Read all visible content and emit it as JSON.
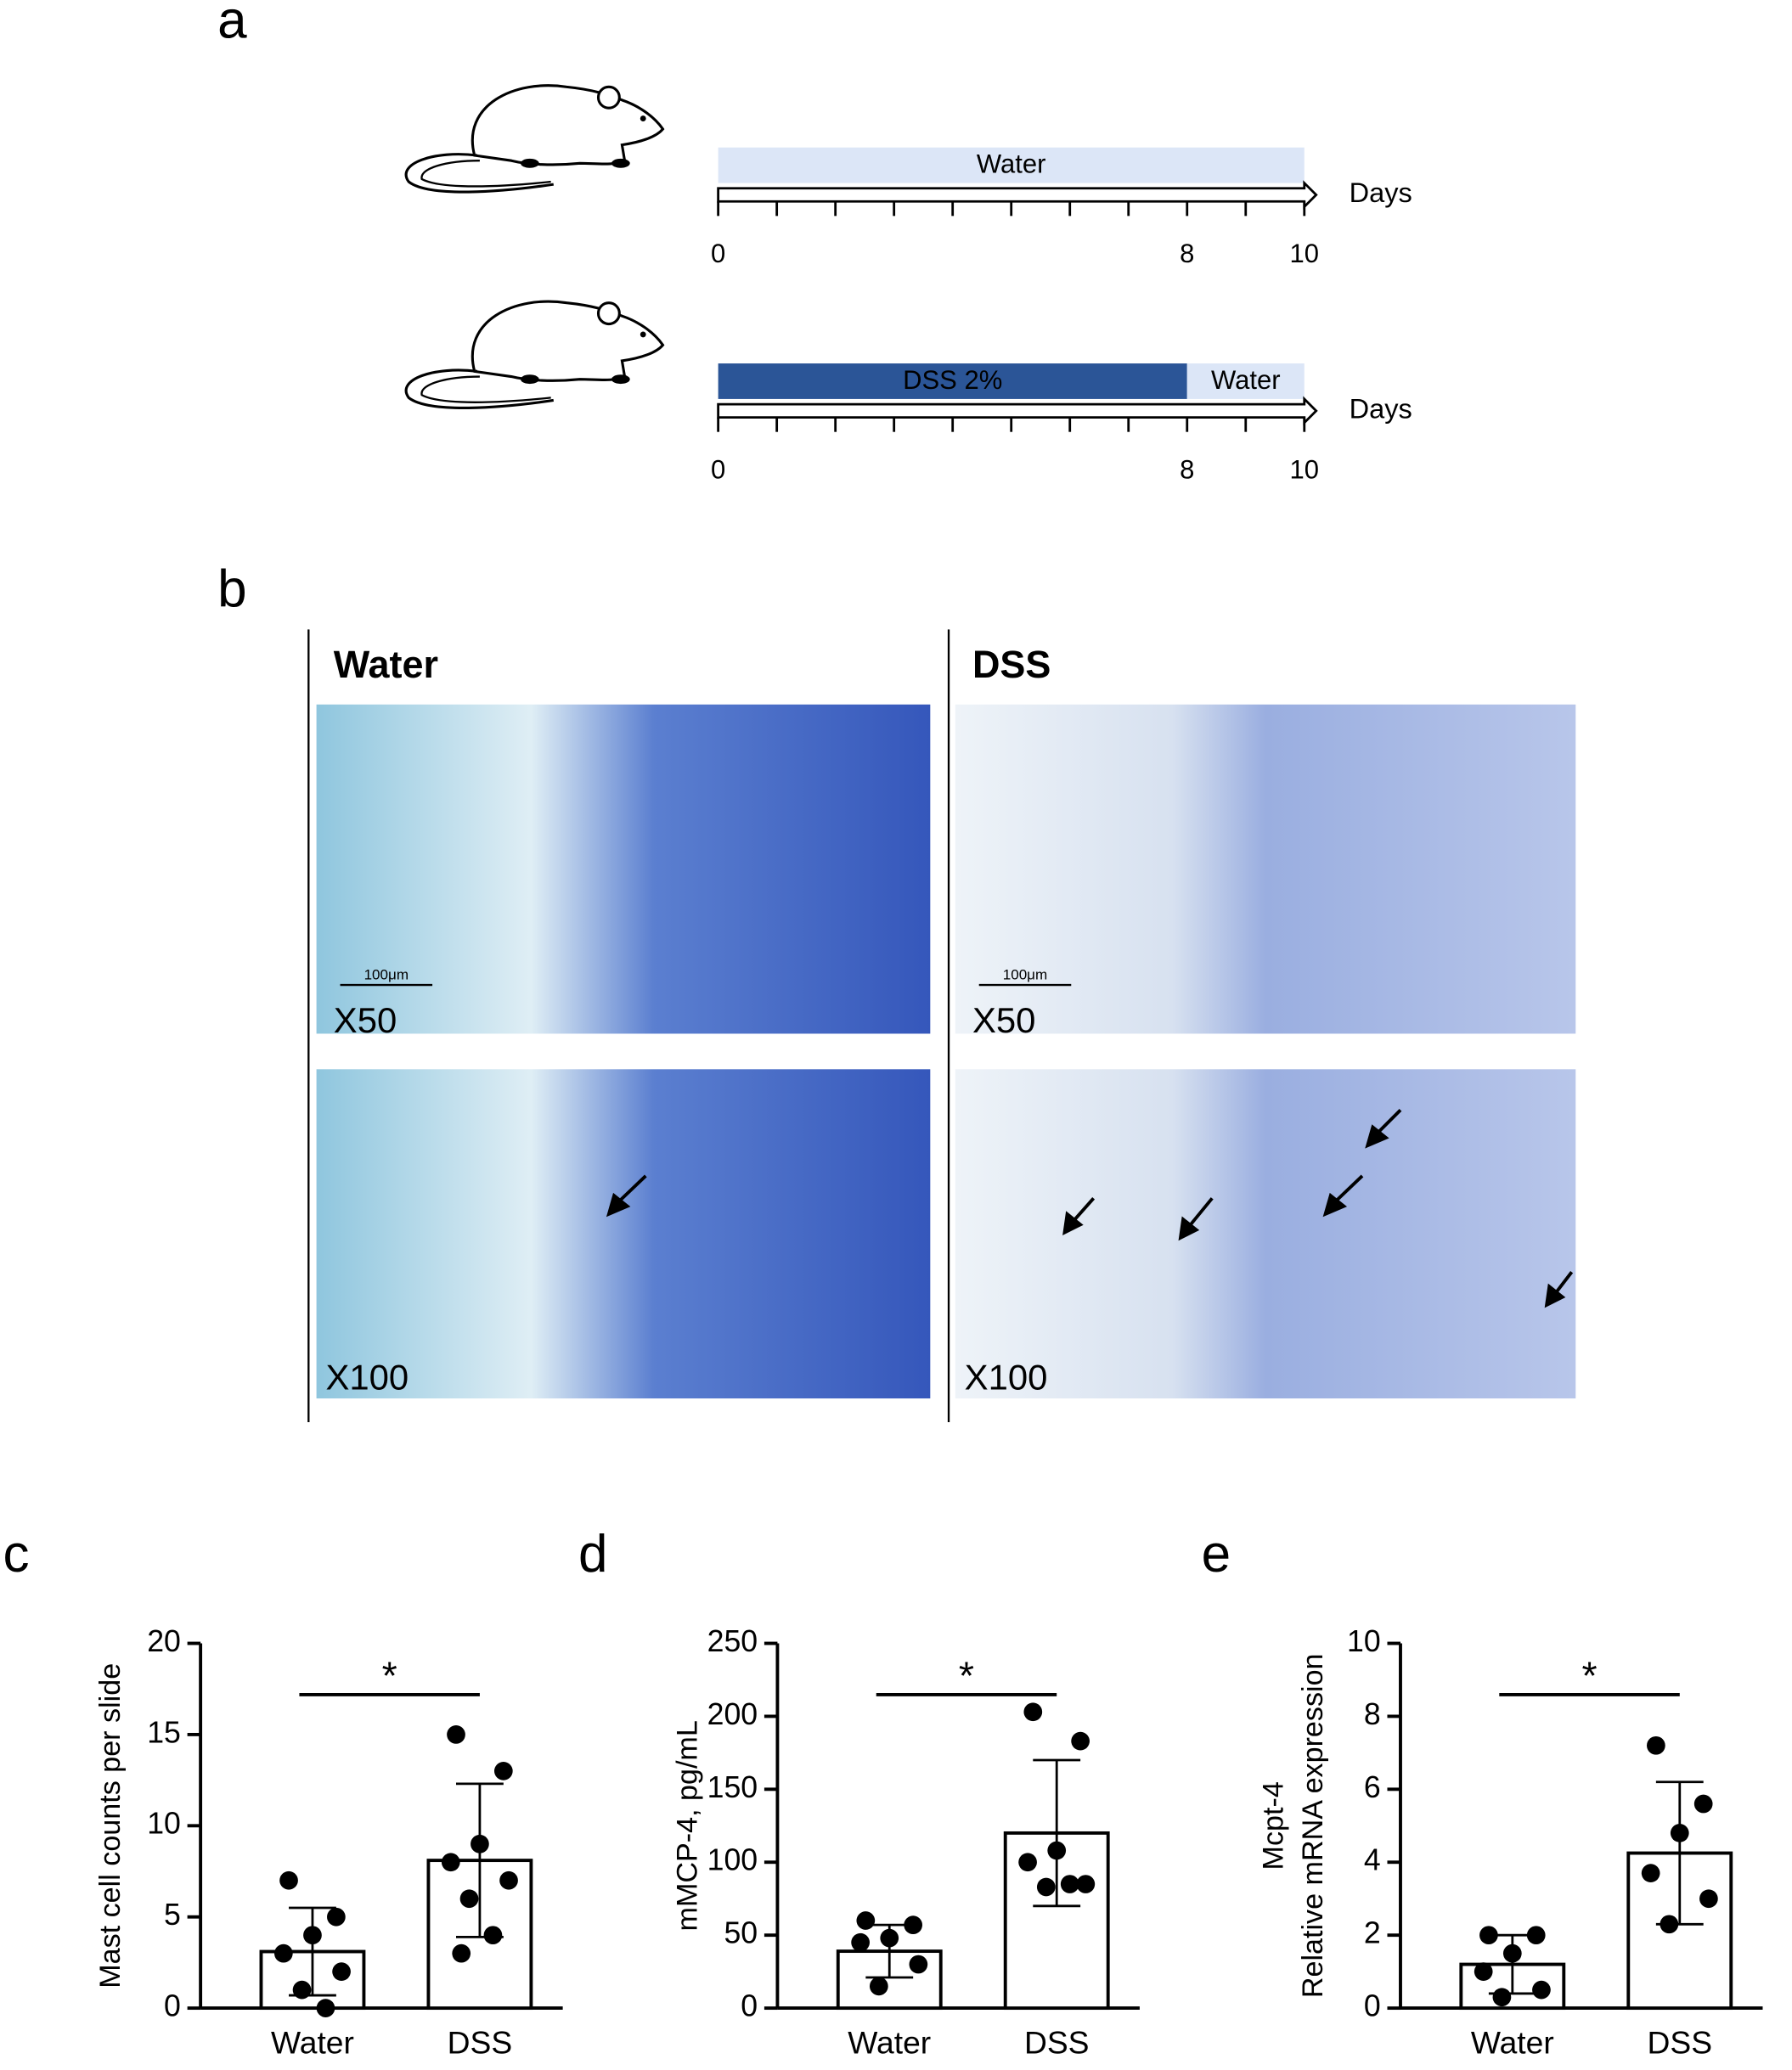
{
  "panel_a": {
    "label": "a",
    "timelines": [
      {
        "axis_label": "Days",
        "xlim": [
          0,
          10
        ],
        "ticks": [
          0,
          8,
          10
        ],
        "segments": [
          {
            "label": "Water",
            "start": 0,
            "end": 10,
            "color": "#dce6f7"
          }
        ]
      },
      {
        "axis_label": "Days",
        "xlim": [
          0,
          10
        ],
        "ticks": [
          0,
          8,
          10
        ],
        "segments": [
          {
            "label": "DSS 2%",
            "start": 0,
            "end": 8,
            "color": "#2b5597"
          },
          {
            "label": "Water",
            "start": 8,
            "end": 10,
            "color": "#dce6f7"
          }
        ]
      }
    ]
  },
  "panel_b": {
    "label": "b",
    "columns": [
      {
        "title": "Water",
        "images": [
          {
            "magnification": "X50",
            "scale_bar": "100μm"
          },
          {
            "magnification": "X100"
          }
        ]
      },
      {
        "title": "DSS",
        "images": [
          {
            "magnification": "X50",
            "scale_bar": "100μm"
          },
          {
            "magnification": "X100"
          }
        ]
      }
    ]
  },
  "chart_data": [
    {
      "type": "bar",
      "panel_label": "c",
      "ylabel": [
        "Mast cell counts per slide"
      ],
      "categories": [
        "Water",
        "DSS"
      ],
      "values": [
        3.1,
        8.1
      ],
      "errors": [
        2.4,
        4.2
      ],
      "points": [
        [
          7,
          5,
          4,
          3,
          2,
          1,
          0
        ],
        [
          15,
          13,
          9,
          8,
          7,
          6,
          4,
          3
        ]
      ],
      "ylim": [
        0,
        20
      ],
      "yticks": [
        0,
        5,
        10,
        15,
        20
      ],
      "significance": "*"
    },
    {
      "type": "bar",
      "panel_label": "d",
      "ylabel": [
        "mMCP-4, pg/mL"
      ],
      "categories": [
        "Water",
        "DSS"
      ],
      "values": [
        39,
        120
      ],
      "errors": [
        18,
        50
      ],
      "points": [
        [
          60,
          57,
          48,
          45,
          30,
          15
        ],
        [
          203,
          183,
          108,
          100,
          85,
          83,
          85
        ]
      ],
      "ylim": [
        0,
        250
      ],
      "yticks": [
        0,
        50,
        100,
        150,
        200,
        250
      ],
      "significance": "*"
    },
    {
      "type": "bar",
      "panel_label": "e",
      "ylabel": [
        "Mcpt-4",
        "Relative mRNA expression"
      ],
      "categories": [
        "Water",
        "DSS"
      ],
      "values": [
        1.2,
        4.25
      ],
      "errors": [
        0.8,
        1.95
      ],
      "points": [
        [
          2,
          2,
          1.5,
          1,
          0.5,
          0.3
        ],
        [
          7.2,
          5.6,
          4.8,
          3.7,
          3.0,
          2.3
        ]
      ],
      "ylim": [
        0,
        10
      ],
      "yticks": [
        0,
        2,
        4,
        6,
        8,
        10
      ],
      "significance": "*"
    }
  ]
}
